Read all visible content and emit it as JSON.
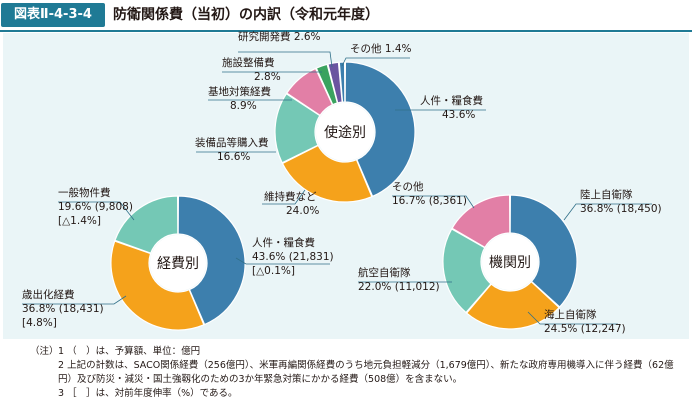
{
  "header": {
    "figure_no": "図表Ⅱ-4-3-4",
    "title": "防衛関係費（当初）の内訳（令和元年度）"
  },
  "colors": {
    "header_accent": "#1f7a95",
    "panel_bg": "#eaf5f7",
    "blue": "#3d7fad",
    "orange": "#f5a21b",
    "teal": "#74c8b5",
    "pink": "#e27fa6",
    "green": "#3aa35f",
    "purple": "#6a54a0",
    "leader": "#2f6f88"
  },
  "chart_data": [
    {
      "type": "pie",
      "center_label": "使途別",
      "slices": [
        {
          "label": "人件・糧食費",
          "value": 43.6,
          "value_text": "43.6%",
          "color": "#3d7fad"
        },
        {
          "label": "維持費など",
          "value": 24.0,
          "value_text": "24.0%",
          "color": "#f5a21b"
        },
        {
          "label": "装備品等購入費",
          "value": 16.6,
          "value_text": "16.6%",
          "color": "#74c8b5"
        },
        {
          "label": "基地対策経費",
          "value": 8.9,
          "value_text": "8.9%",
          "color": "#e27fa6"
        },
        {
          "label": "施設整備費",
          "value": 2.8,
          "value_text": "2.8%",
          "color": "#3aa35f"
        },
        {
          "label": "研究開発費",
          "value": 2.6,
          "value_text": "2.6%",
          "color": "#6a54a0"
        },
        {
          "label": "その他",
          "value": 1.4,
          "value_text": "1.4%",
          "color": "#3d7fad"
        }
      ]
    },
    {
      "type": "pie",
      "center_label": "経費別",
      "slices": [
        {
          "label": "人件・糧食費",
          "value": 43.6,
          "value_text": "43.6% (21,831)",
          "change": "[△0.1%]",
          "color": "#3d7fad"
        },
        {
          "label": "歳出化経費",
          "value": 36.8,
          "value_text": "36.8% (18,431)",
          "change": "[4.8%]",
          "color": "#f5a21b"
        },
        {
          "label": "一般物件費",
          "value": 19.6,
          "value_text": "19.6% (9,808)",
          "change": "[△1.4%]",
          "color": "#74c8b5"
        }
      ]
    },
    {
      "type": "pie",
      "center_label": "機関別",
      "slices": [
        {
          "label": "陸上自衛隊",
          "value": 36.8,
          "value_text": "36.8% (18,450)",
          "color": "#3d7fad"
        },
        {
          "label": "海上自衛隊",
          "value": 24.5,
          "value_text": "24.5% (12,247)",
          "color": "#f5a21b"
        },
        {
          "label": "航空自衛隊",
          "value": 22.0,
          "value_text": "22.0% (11,012)",
          "color": "#74c8b5"
        },
        {
          "label": "その他",
          "value": 16.7,
          "value_text": "16.7% (8,361)",
          "color": "#e27fa6"
        }
      ]
    }
  ],
  "notes": {
    "lead": "（注）",
    "items": [
      {
        "num": "1",
        "text": "（　）は、予算額、単位：億円"
      },
      {
        "num": "2",
        "text": "上記の計数は、SACO関係経費（256億円）、米軍再編関係経費のうち地元負担軽減分（1,679億円）、新たな政府専用機導入に伴う経費（62億円）及び防災・減災・国土強靱化のための3か年緊急対策にかかる経費（508億）を含まない。"
      },
      {
        "num": "3",
        "text": "［　］は、対前年度伸率（%）である。"
      }
    ]
  }
}
